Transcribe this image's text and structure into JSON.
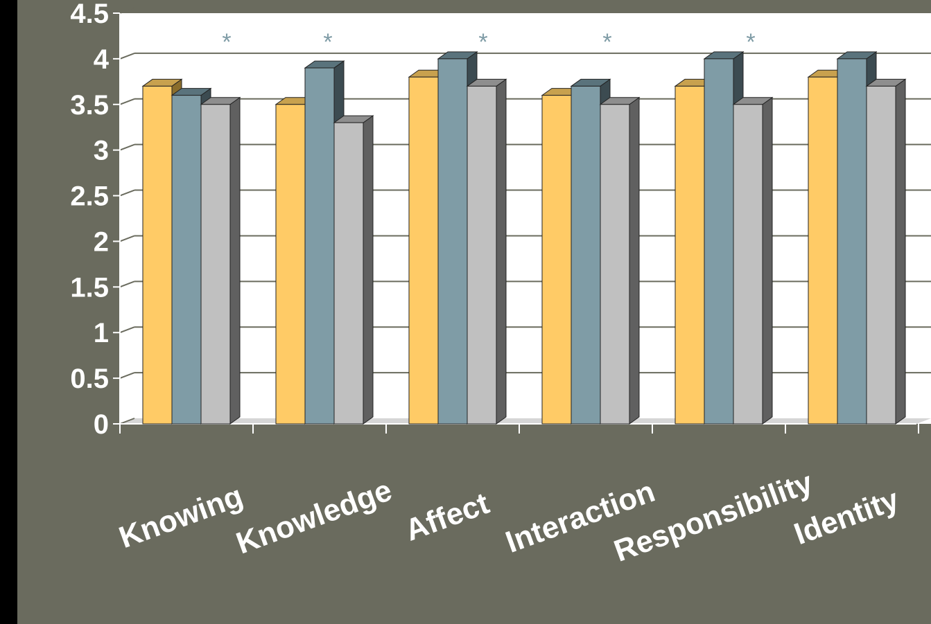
{
  "chart_data": {
    "type": "bar",
    "categories": [
      "Knowing",
      "Knowledge",
      "Affect",
      "Interaction",
      "Responsibility",
      "Identity"
    ],
    "series": [
      {
        "values": [
          3.7,
          3.5,
          3.8,
          3.6,
          3.7,
          3.8
        ]
      },
      {
        "values": [
          3.6,
          3.9,
          4.0,
          3.7,
          4.0,
          4.0
        ]
      },
      {
        "values": [
          3.5,
          3.3,
          3.7,
          3.5,
          3.5,
          3.7
        ]
      }
    ],
    "ylim": [
      0,
      4.5
    ],
    "yticks": [
      "0",
      "0.5",
      "1",
      "1.5",
      "2",
      "2.5",
      "3",
      "3.5",
      "4",
      "4.5"
    ],
    "significance_markers": [
      {
        "marker": "*",
        "category": "Knowing",
        "position": "between-groups"
      },
      {
        "marker": "*",
        "category": "Knowledge",
        "position": "above-group"
      },
      {
        "marker": "*",
        "category": "Affect",
        "position": "above-group"
      },
      {
        "marker": "*",
        "category": "Interaction",
        "position": "above-group"
      },
      {
        "marker": "*",
        "category": "Responsibility",
        "position": "above-group"
      }
    ],
    "grid": true,
    "legend": "none",
    "colors": {
      "series": [
        "#ffcb66",
        "#7f9ca6",
        "#c0c0c0"
      ],
      "series_top": [
        "#c8a14e",
        "#5a737c",
        "#8e8e8e"
      ],
      "series_side": [
        "#8a6d2c",
        "#3c4b51",
        "#606060"
      ],
      "background": "#6a6b5e",
      "plot_area": "#ffffff",
      "gridline": "#6a6b5e",
      "text": "#ffffff"
    }
  }
}
